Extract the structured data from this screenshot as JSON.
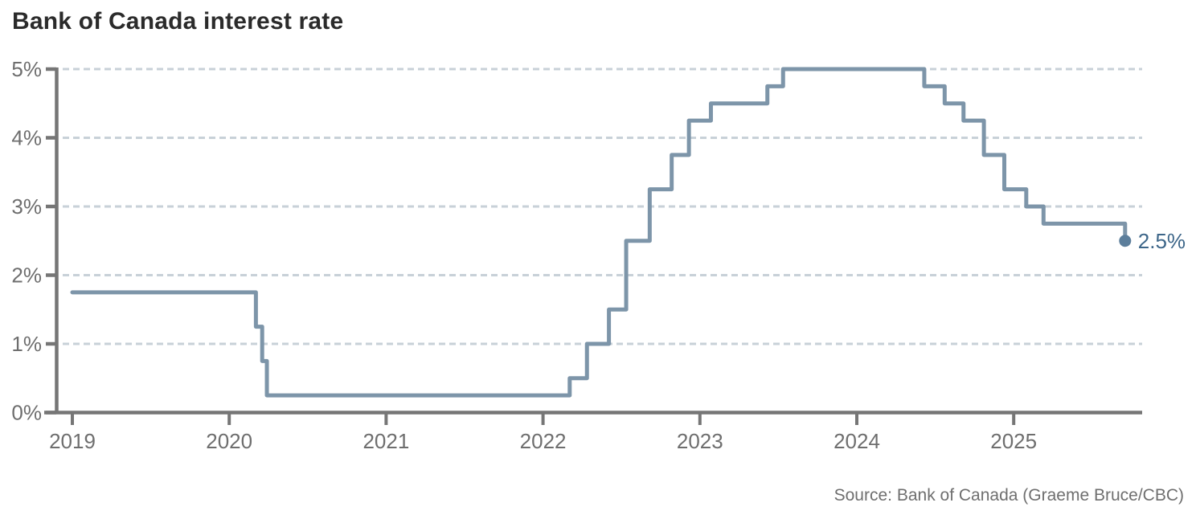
{
  "header": {
    "title": "Bank of Canada interest rate"
  },
  "footer": {
    "source": "Source: Bank of Canada (Graeme Bruce/CBC)"
  },
  "chart_data": {
    "type": "line",
    "subtype": "step-after",
    "title": "Bank of Canada interest rate",
    "xlabel": "",
    "ylabel": "",
    "xlim": [
      2018.82,
      2025.82
    ],
    "ylim": [
      0,
      5
    ],
    "grid": "horizontal-dashed",
    "legend": "none",
    "x_ticks": [
      {
        "value": 2019,
        "label": "2019"
      },
      {
        "value": 2020,
        "label": "2020"
      },
      {
        "value": 2021,
        "label": "2021"
      },
      {
        "value": 2022,
        "label": "2022"
      },
      {
        "value": 2023,
        "label": "2023"
      },
      {
        "value": 2024,
        "label": "2024"
      },
      {
        "value": 2025,
        "label": "2025"
      }
    ],
    "y_ticks": [
      {
        "value": 0,
        "label": "0%"
      },
      {
        "value": 1,
        "label": "1%"
      },
      {
        "value": 2,
        "label": "2%"
      },
      {
        "value": 3,
        "label": "3%"
      },
      {
        "value": 4,
        "label": "4%"
      },
      {
        "value": 5,
        "label": "5%"
      }
    ],
    "end_label": "2.5%",
    "series": [
      {
        "name": "Bank of Canada interest rate",
        "points": [
          {
            "date": "2019-01-01",
            "x": 2019.0,
            "rate": 1.75
          },
          {
            "date": "2020-03-04",
            "x": 2020.17,
            "rate": 1.25
          },
          {
            "date": "2020-03-16",
            "x": 2020.21,
            "rate": 0.75
          },
          {
            "date": "2020-03-27",
            "x": 2020.24,
            "rate": 0.25
          },
          {
            "date": "2022-03-02",
            "x": 2022.17,
            "rate": 0.5
          },
          {
            "date": "2022-04-13",
            "x": 2022.28,
            "rate": 1.0
          },
          {
            "date": "2022-06-01",
            "x": 2022.42,
            "rate": 1.5
          },
          {
            "date": "2022-07-13",
            "x": 2022.53,
            "rate": 2.5
          },
          {
            "date": "2022-09-07",
            "x": 2022.68,
            "rate": 3.25
          },
          {
            "date": "2022-10-26",
            "x": 2022.82,
            "rate": 3.75
          },
          {
            "date": "2022-12-07",
            "x": 2022.93,
            "rate": 4.25
          },
          {
            "date": "2023-01-25",
            "x": 2023.07,
            "rate": 4.5
          },
          {
            "date": "2023-06-07",
            "x": 2023.43,
            "rate": 4.75
          },
          {
            "date": "2023-07-12",
            "x": 2023.53,
            "rate": 5.0
          },
          {
            "date": "2024-06-05",
            "x": 2024.43,
            "rate": 4.75
          },
          {
            "date": "2024-07-24",
            "x": 2024.56,
            "rate": 4.5
          },
          {
            "date": "2024-09-04",
            "x": 2024.68,
            "rate": 4.25
          },
          {
            "date": "2024-10-23",
            "x": 2024.81,
            "rate": 3.75
          },
          {
            "date": "2024-12-11",
            "x": 2024.94,
            "rate": 3.25
          },
          {
            "date": "2025-01-29",
            "x": 2025.08,
            "rate": 3.0
          },
          {
            "date": "2025-03-12",
            "x": 2025.19,
            "rate": 2.75
          },
          {
            "date": "2025-09-17",
            "x": 2025.71,
            "rate": 2.5
          }
        ]
      }
    ],
    "colors": {
      "line": "#7D95A9",
      "end_dot": "#5C7E9B",
      "end_label": "#3D6689",
      "grid": "#C8D1D8",
      "axis": "#767676",
      "tick_text": "#6E6E6E",
      "title": "#2B2B2B",
      "source": "#6F6F6F"
    }
  }
}
